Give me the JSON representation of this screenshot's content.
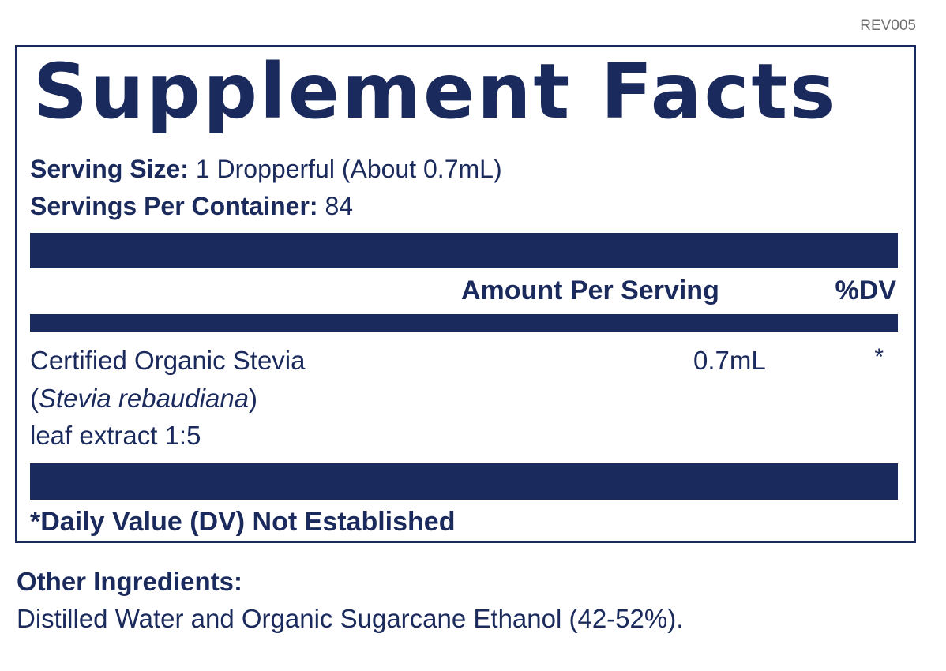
{
  "revision": "REV005",
  "title": "Supplement Facts",
  "serving_size": {
    "label": "Serving Size:",
    "value": "1 Dropperful (About 0.7mL)"
  },
  "servings_per_container": {
    "label": "Servings Per Container:",
    "value": "84"
  },
  "table_header": {
    "amount": "Amount Per Serving",
    "dv": "%DV"
  },
  "ingredient": {
    "name": "Certified Organic Stevia",
    "paren_open": "(",
    "latin": "Stevia rebaudiana",
    "paren_close": ")",
    "detail": "leaf extract  1:5",
    "amount": "0.7mL",
    "dv": "*"
  },
  "footnote": "*Daily Value (DV) Not Established",
  "other_ingredients": {
    "title": "Other Ingredients:",
    "text": "Distilled Water and Organic Sugarcane Ethanol (42-52%)."
  },
  "colors": {
    "navy": "#1b2a5c",
    "rev_gray": "#707070"
  }
}
